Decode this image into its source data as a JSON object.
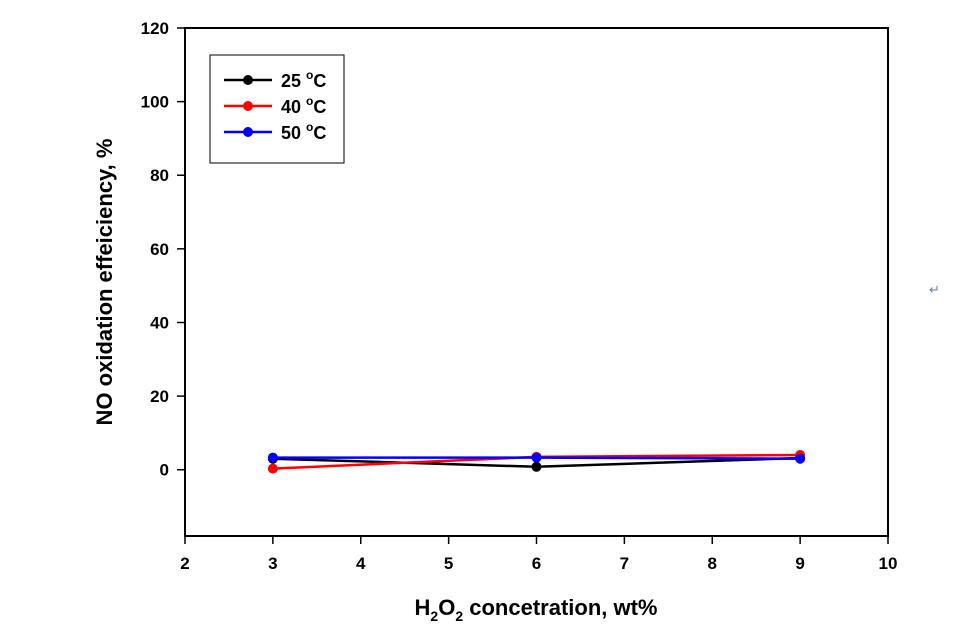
{
  "chart_data": {
    "type": "line",
    "xlabel": {
      "main": "H",
      "sub1": "2",
      "mid": "O",
      "sub2": "2",
      "rest": " concetration, wt%"
    },
    "ylabel": "NO oxidation effeiciency, %",
    "xlim": [
      2,
      10
    ],
    "ylim": [
      -18,
      120
    ],
    "x_ticks": [
      2,
      3,
      4,
      5,
      6,
      7,
      8,
      9,
      10
    ],
    "y_ticks": [
      0,
      20,
      40,
      60,
      80,
      100,
      120
    ],
    "legend_position": "top-left",
    "series": [
      {
        "name": "25 °C",
        "name_parts": {
          "value": "25 ",
          "sup": "o",
          "unit": "C"
        },
        "color": "#000000",
        "x": [
          3,
          6,
          9
        ],
        "y": [
          3.0,
          0.8,
          3.2
        ]
      },
      {
        "name": "40 °C",
        "name_parts": {
          "value": "40 ",
          "sup": "o",
          "unit": "C"
        },
        "color": "#ff0000",
        "x": [
          3,
          6,
          9
        ],
        "y": [
          0.3,
          3.5,
          4.0
        ]
      },
      {
        "name": "50 °C",
        "name_parts": {
          "value": "50 ",
          "sup": "o",
          "unit": "C"
        },
        "color": "#0000ff",
        "x": [
          3,
          6,
          9
        ],
        "y": [
          3.3,
          3.3,
          3.0
        ]
      }
    ]
  },
  "page": {
    "return_mark": "↵"
  }
}
